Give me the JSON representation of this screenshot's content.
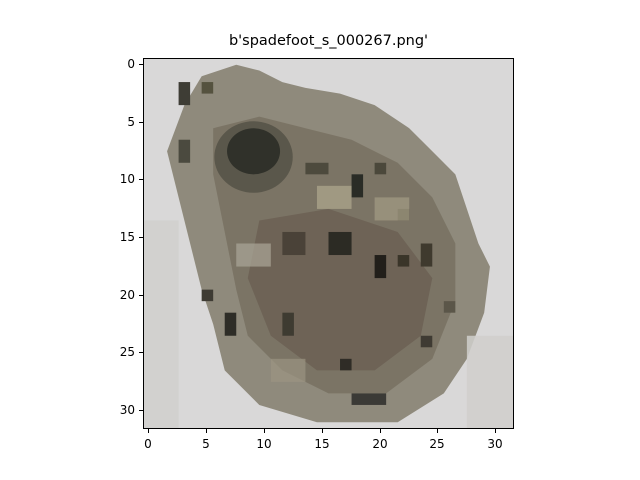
{
  "title": "b'spadefoot_s_000267.png'",
  "axes": {
    "x_ticks": [
      "0",
      "5",
      "10",
      "15",
      "20",
      "25",
      "30"
    ],
    "y_ticks": [
      "0",
      "5",
      "10",
      "15",
      "20",
      "25",
      "30"
    ]
  },
  "image": {
    "description_name": "spadefoot-toad-pixel-image",
    "background_color": "#d9d8d8",
    "palette": {
      "light": "#d4d3d1",
      "mid": "#8c8676",
      "dark": "#4c4a40",
      "darkest": "#1b1d1a",
      "brown": "#6a5c50"
    }
  }
}
